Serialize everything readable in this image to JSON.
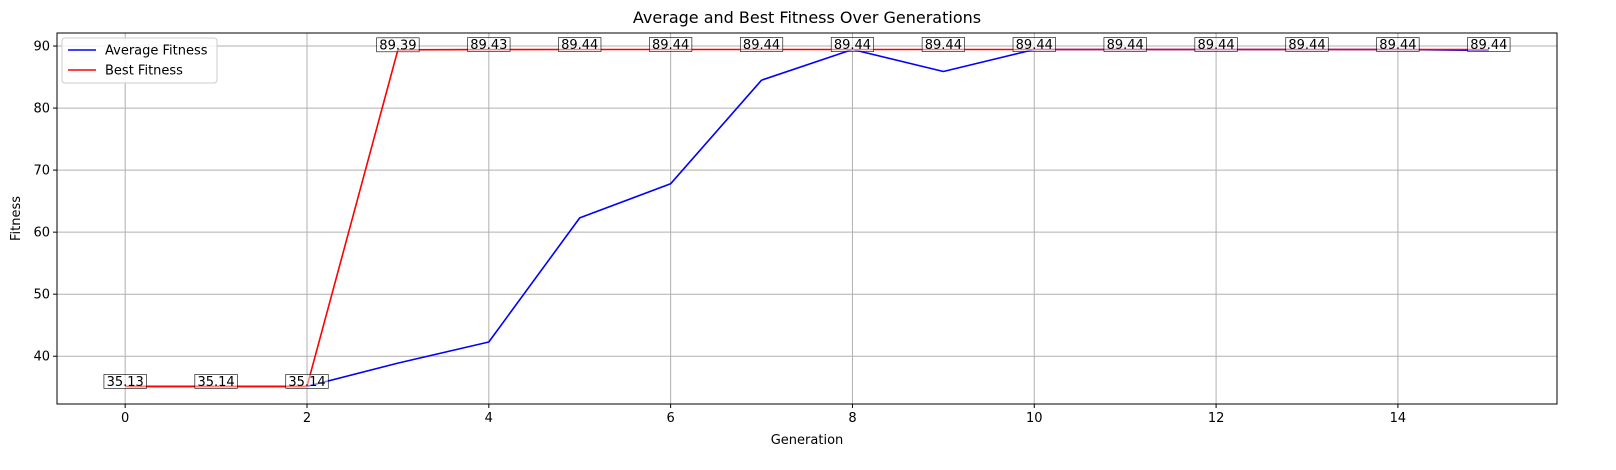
{
  "chart_data": {
    "type": "line",
    "title": "Average and Best Fitness Over Generations",
    "xlabel": "Generation",
    "ylabel": "Fitness",
    "xlim": [
      -0.75,
      15.75
    ],
    "ylim": [
      32.3,
      92.1
    ],
    "xticks": [
      0,
      2,
      4,
      6,
      8,
      10,
      12,
      14
    ],
    "yticks": [
      40,
      50,
      60,
      70,
      80,
      90
    ],
    "grid": true,
    "legend_position": "top-left",
    "x": [
      0,
      1,
      2,
      3,
      4,
      5,
      6,
      7,
      8,
      9,
      10,
      11,
      12,
      13,
      14,
      15
    ],
    "series": [
      {
        "name": "Average Fitness",
        "color": "#0000ff",
        "values": [
          35.13,
          35.14,
          35.14,
          38.9,
          42.3,
          62.3,
          67.8,
          84.5,
          89.44,
          85.9,
          89.44,
          89.44,
          89.44,
          89.44,
          89.44,
          89.3
        ]
      },
      {
        "name": "Best Fitness",
        "color": "#ff0000",
        "values": [
          35.13,
          35.14,
          35.14,
          89.39,
          89.43,
          89.44,
          89.44,
          89.44,
          89.44,
          89.44,
          89.44,
          89.44,
          89.44,
          89.44,
          89.44,
          89.44
        ]
      }
    ],
    "annotations": [
      "35.13",
      "35.14",
      "35.14",
      "89.39",
      "89.43",
      "89.44",
      "89.44",
      "89.44",
      "89.44",
      "89.44",
      "89.44",
      "89.44",
      "89.44",
      "89.44",
      "89.44",
      "89.44"
    ]
  }
}
